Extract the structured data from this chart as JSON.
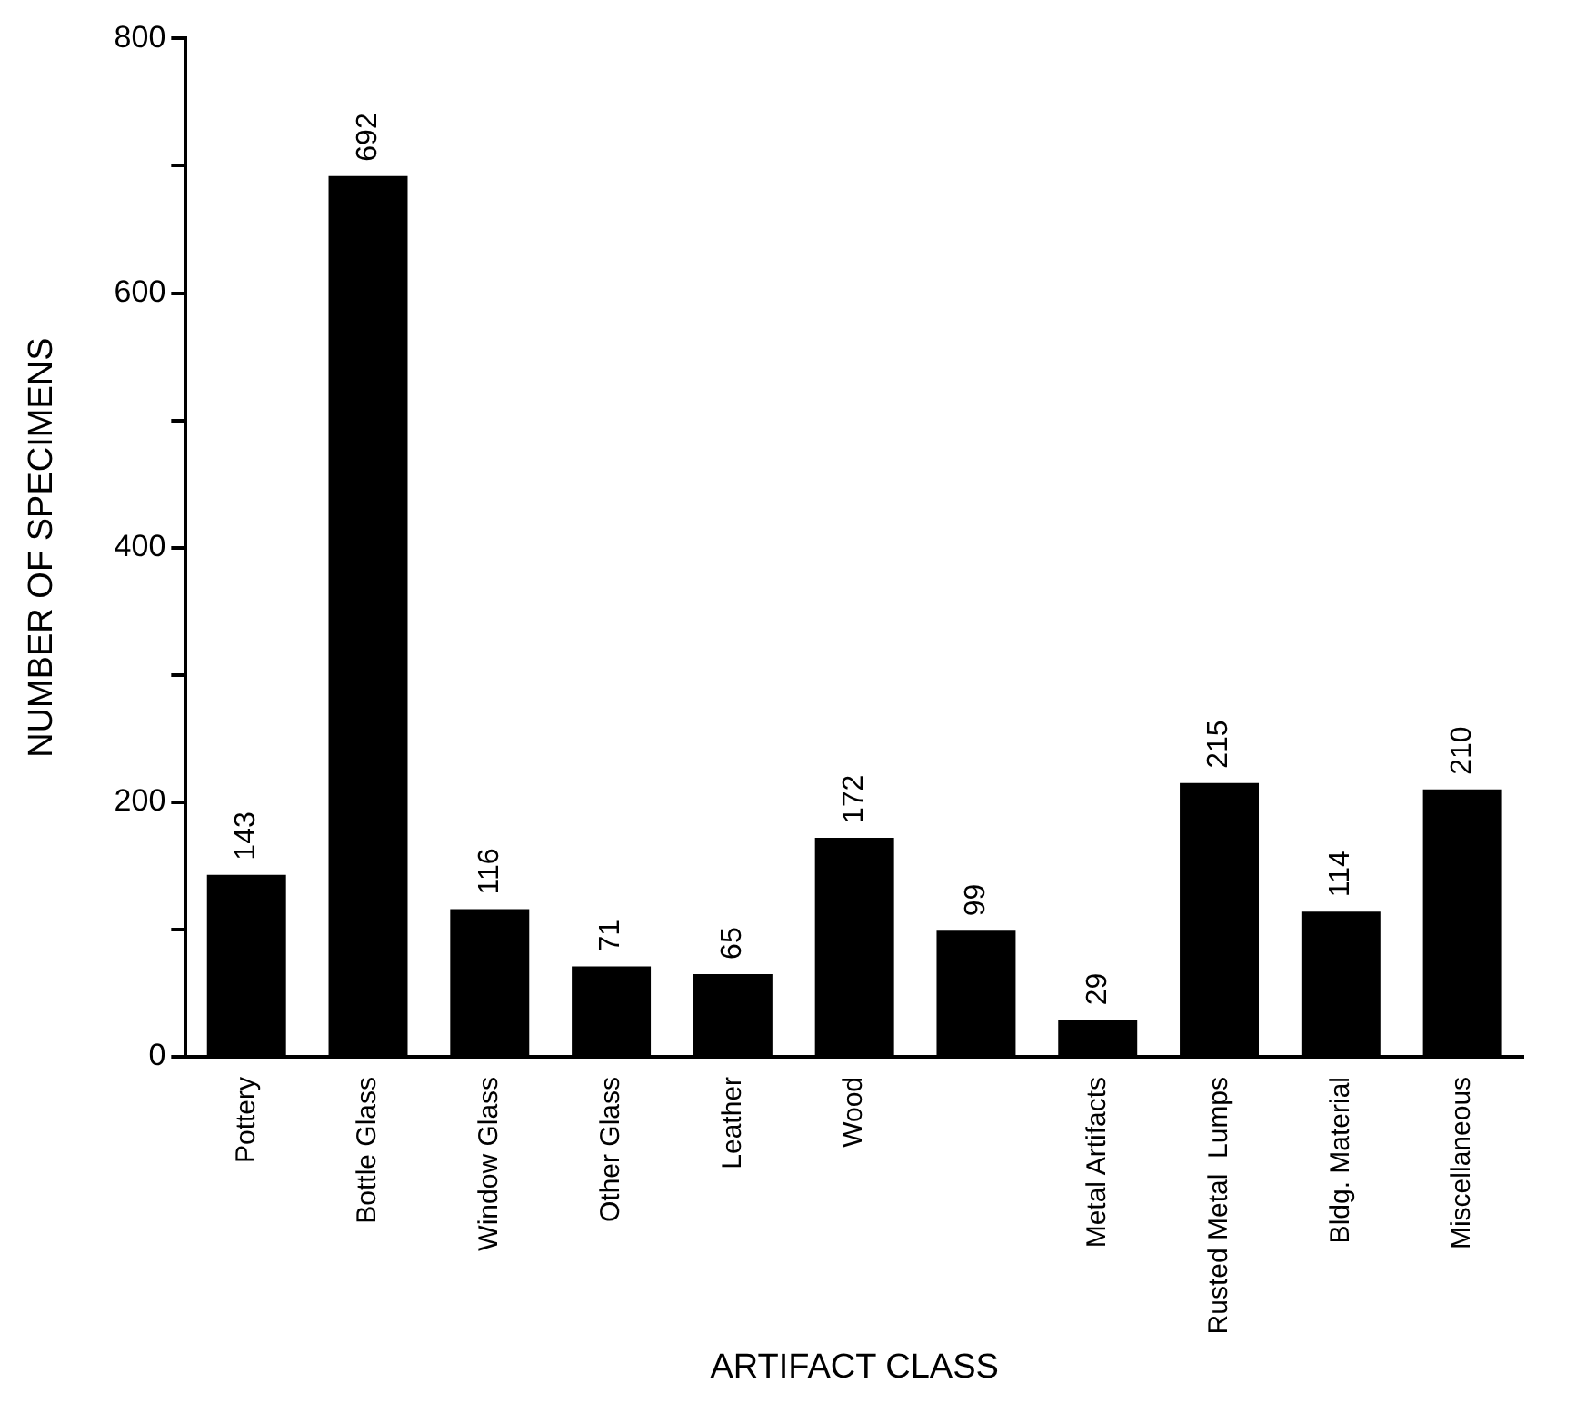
{
  "chart_data": {
    "type": "bar",
    "xlabel": "ARTIFACT CLASS",
    "ylabel": "NUMBER OF SPECIMENS",
    "categories": [
      "Pottery",
      "Bottle Glass",
      "Window Glass",
      "Other Glass",
      "Leather",
      "Wood",
      null,
      "Metal Artifacts",
      "Rusted Metal  Lumps",
      "Bldg. Material",
      "Miscellaneous"
    ],
    "values": [
      143,
      692,
      116,
      71,
      65,
      172,
      99,
      29,
      215,
      114,
      210
    ],
    "color": "#000000",
    "ylim": [
      0,
      800
    ],
    "yticks": [
      0,
      {
        "value": 100,
        "label": null
      },
      200,
      {
        "value": 300,
        "label": null
      },
      400,
      {
        "value": 500,
        "label": null
      },
      600,
      {
        "value": 700,
        "label": null
      },
      800
    ],
    "grid": false,
    "legend": false,
    "data_labels": true
  }
}
